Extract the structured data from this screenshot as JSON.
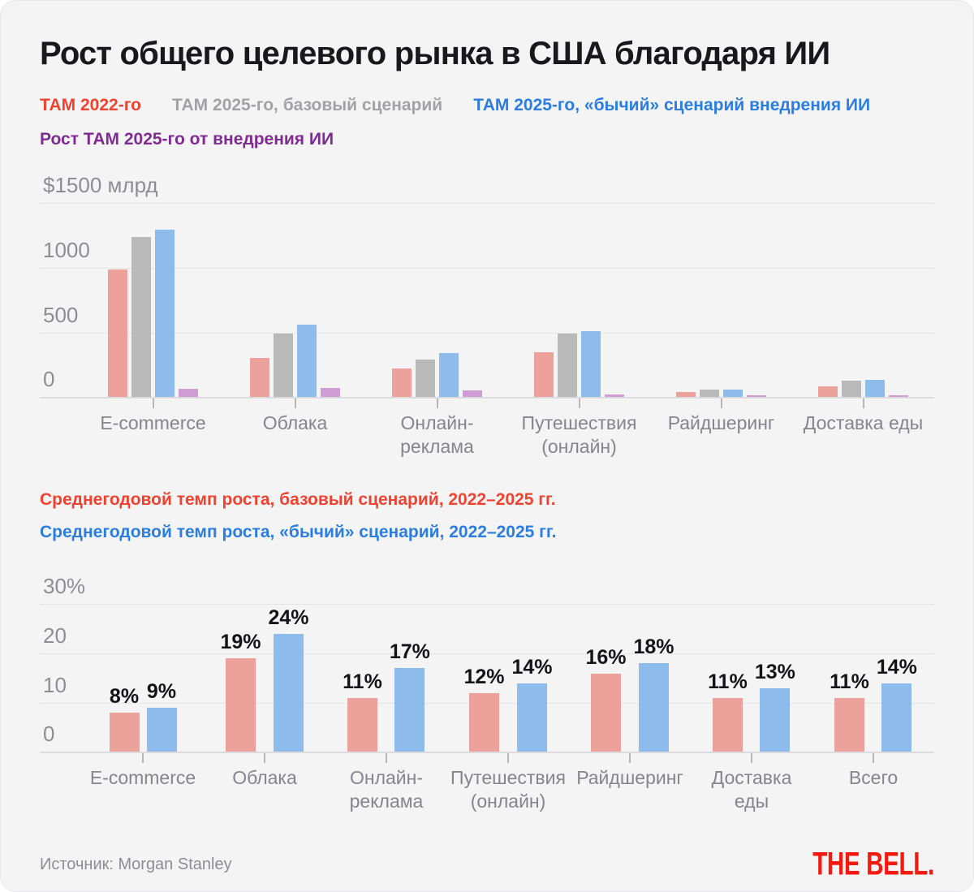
{
  "title": "Рост общего целевого рынка в США благодаря ИИ",
  "colors": {
    "background": "#f4f4f5",
    "title": "#19191c",
    "axis_label": "#8e8e92",
    "category_label": "#85858a",
    "gridline": "#e4e4e6",
    "axis_line": "#dcdcde",
    "tick": "#b7b7ba",
    "value_label": "#141416",
    "bar_red": "#eda19b",
    "bar_gray": "#b9b9b9",
    "bar_blue": "#8dbcec",
    "bar_purple": "#cf9cd4",
    "legend_red": "#ee4331",
    "legend_gray": "#a2a2a4",
    "legend_blue": "#2b7de0",
    "legend_purple": "#7f2b91",
    "logo_red": "#f5190f"
  },
  "chart_data": [
    {
      "type": "bar",
      "unit_top_label": "$1500 млрд",
      "ylim": [
        0,
        1500
      ],
      "yticks": [
        1000,
        500,
        0
      ],
      "grid": true,
      "legend_position": "top",
      "show_value_labels": false,
      "legend_rows": [
        [
          {
            "label": "ТАМ 2022-го",
            "color": "#ee4331"
          },
          {
            "label": "ТАМ 2025-го, базовый сценарий",
            "color": "#a2a2a4"
          },
          {
            "label": "ТАМ 2025-го, «бычий» сценарий внедрения ИИ",
            "color": "#2b7de0"
          }
        ],
        [
          {
            "label": "Рост ТАМ 2025-го от внедрения ИИ",
            "color": "#7f2b91"
          }
        ]
      ],
      "categories": [
        [
          "E-commerce"
        ],
        [
          "Облака"
        ],
        [
          "Онлайн-",
          "реклама"
        ],
        [
          "Путешествия",
          "(онлайн)"
        ],
        [
          "Райдшеринг"
        ],
        [
          "Доставка еды"
        ]
      ],
      "series": [
        {
          "name": "ТАМ 2022-го",
          "color": "#eda19b",
          "values": [
            990,
            300,
            220,
            350,
            40,
            85
          ]
        },
        {
          "name": "ТАМ 2025-го, базовый сценарий",
          "color": "#b9b9b9",
          "values": [
            1240,
            490,
            290,
            490,
            55,
            125
          ]
        },
        {
          "name": "ТАМ 2025-го, «бычий» сценарий внедрения ИИ",
          "color": "#8dbcec",
          "values": [
            1300,
            560,
            340,
            510,
            60,
            130
          ]
        },
        {
          "name": "Рост ТАМ 2025-го от внедрения ИИ",
          "color": "#cf9cd4",
          "values": [
            65,
            70,
            50,
            20,
            10,
            10
          ]
        }
      ]
    },
    {
      "type": "bar",
      "unit_top_label": "30%",
      "ylim": [
        0,
        30
      ],
      "yticks": [
        20,
        10,
        0
      ],
      "grid": true,
      "legend_position": "top",
      "show_value_labels": true,
      "legend_rows": [
        [
          {
            "label": "Среднегодовой темп роста, базовый сценарий, 2022–2025 гг.",
            "color": "#ee4331"
          }
        ],
        [
          {
            "label": "Среднегодовой темп роста, «бычий» сценарий, 2022–2025 гг.",
            "color": "#2b7de0"
          }
        ]
      ],
      "categories": [
        [
          "E-commerce"
        ],
        [
          "Облака"
        ],
        [
          "Онлайн-",
          "реклама"
        ],
        [
          "Путешествия",
          "(онлайн)"
        ],
        [
          "Райдшеринг"
        ],
        [
          "Доставка",
          "еды"
        ],
        [
          "Всего"
        ]
      ],
      "series": [
        {
          "name": "Среднегодовой темп роста, базовый сценарий, 2022–2025 гг.",
          "color": "#eda19b",
          "values": [
            8,
            19,
            11,
            12,
            16,
            11,
            11
          ],
          "labels": [
            "8%",
            "19%",
            "11%",
            "12%",
            "16%",
            "11%",
            "11%"
          ]
        },
        {
          "name": "Среднегодовой темп роста, «бычий» сценарий, 2022–2025 гг.",
          "color": "#8dbcec",
          "values": [
            9,
            24,
            17,
            14,
            18,
            13,
            14
          ],
          "labels": [
            "9%",
            "24%",
            "17%",
            "14%",
            "18%",
            "13%",
            "14%"
          ]
        }
      ]
    }
  ],
  "footer": {
    "source": "Источник: Morgan Stanley",
    "logo": "THE BELL."
  }
}
